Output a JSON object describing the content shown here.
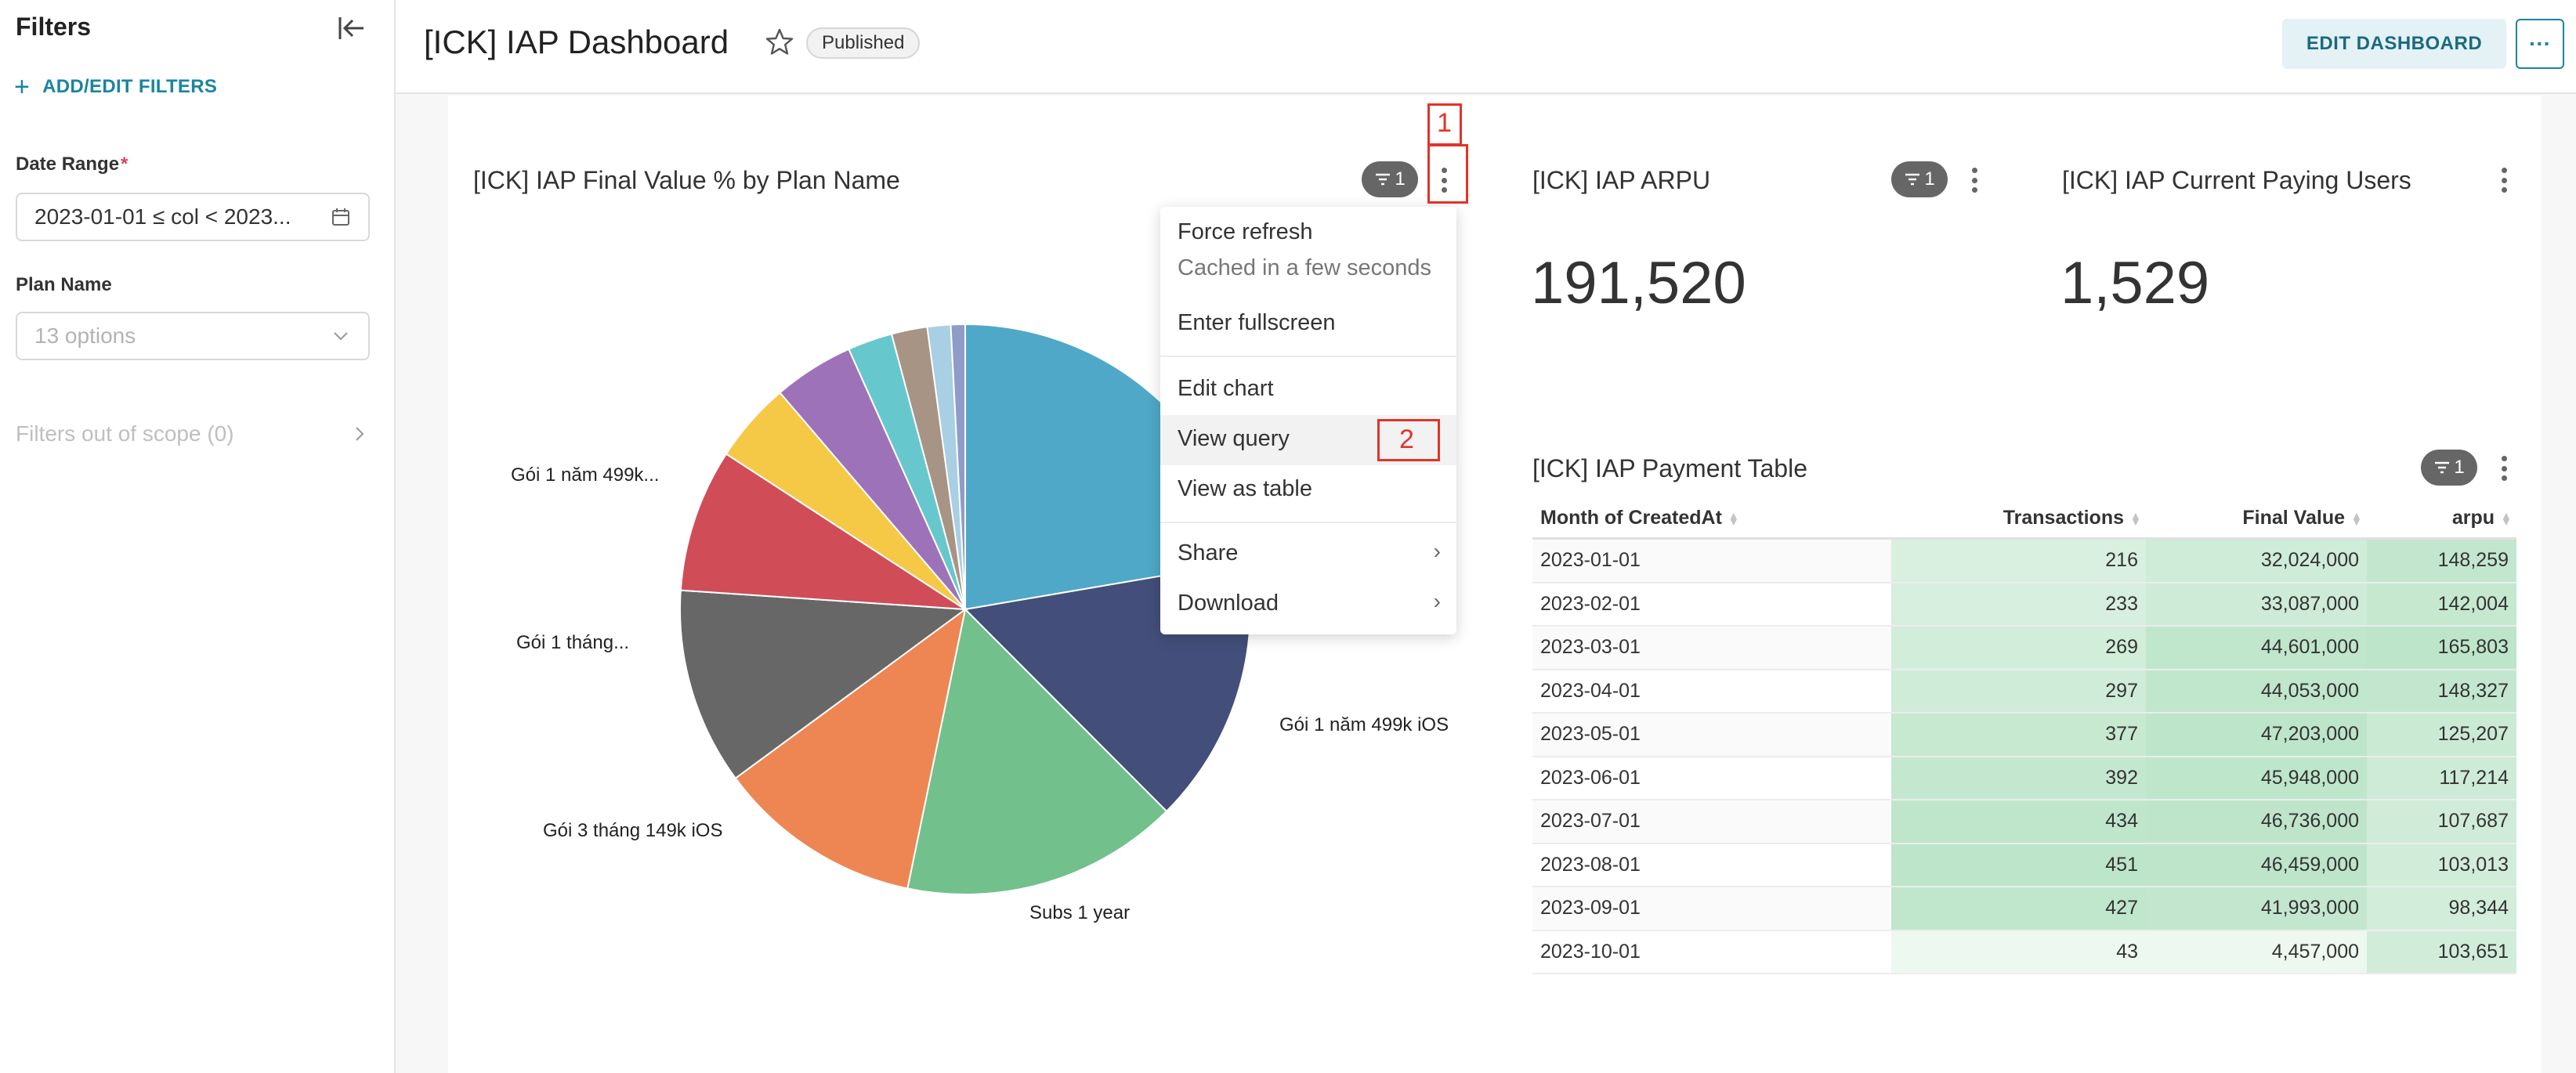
{
  "sidebar": {
    "title": "Filters",
    "add_filters_label": "ADD/EDIT FILTERS",
    "date_range": {
      "label": "Date Range",
      "required_mark": "*",
      "value": "2023-01-01 ≤ col < 2023..."
    },
    "plan_name": {
      "label": "Plan Name",
      "placeholder": "13 options"
    },
    "out_of_scope_label": "Filters out of scope (0)"
  },
  "header": {
    "title": "[ICK] IAP Dashboard",
    "status_badge": "Published",
    "edit_button": "EDIT DASHBOARD",
    "more_button": "···"
  },
  "pie_panel": {
    "title": "[ICK] IAP Final Value % by Plan Name",
    "filter_count": "1",
    "labels": [
      "Gói 1 năm 499k...",
      "Gói 1 tháng...",
      "Gói 3 tháng 149k iOS",
      "Subs 1 year",
      "Gói 1 năm 499k iOS"
    ]
  },
  "chart_data": {
    "type": "pie",
    "title": "[ICK] IAP Final Value % by Plan Name",
    "slices": [
      {
        "label": "",
        "value": 22.0,
        "color": "#4fa8c8"
      },
      {
        "label": "Gói 1 năm 499k iOS",
        "value": 15.0,
        "color": "#434f7a"
      },
      {
        "label": "Subs 1 year",
        "value": 15.5,
        "color": "#72c08c"
      },
      {
        "label": "Gói 3 tháng 149k iOS",
        "value": 11.5,
        "color": "#ee8653"
      },
      {
        "label": "Gói 1 tháng...",
        "value": 11.0,
        "color": "#676767"
      },
      {
        "label": "Gói 1 năm 499k...",
        "value": 8.0,
        "color": "#d04d58"
      },
      {
        "label": "",
        "value": 4.5,
        "color": "#f5c845"
      },
      {
        "label": "",
        "value": 4.5,
        "color": "#9e72b8"
      },
      {
        "label": "",
        "value": 2.5,
        "color": "#66c8cc"
      },
      {
        "label": "",
        "value": 2.0,
        "color": "#a89484"
      },
      {
        "label": "",
        "value": 1.3,
        "color": "#a8cfe3"
      },
      {
        "label": "",
        "value": 0.8,
        "color": "#8f9cc7"
      }
    ]
  },
  "context_menu": {
    "force_refresh": "Force refresh",
    "cached_note": "Cached in a few seconds",
    "enter_fullscreen": "Enter fullscreen",
    "edit_chart": "Edit chart",
    "view_query": "View query",
    "view_as_table": "View as table",
    "share": "Share",
    "download": "Download",
    "chevron": "›"
  },
  "annotations": {
    "step1": "1",
    "step2": "2"
  },
  "arpu_panel": {
    "title": "[ICK] IAP ARPU",
    "filter_count": "1",
    "value": "191,520"
  },
  "users_panel": {
    "title": "[ICK] IAP Current Paying Users",
    "value": "1,529"
  },
  "table_panel": {
    "title": "[ICK] IAP Payment Table",
    "filter_count": "1",
    "columns": [
      "Month of CreatedAt",
      "Transactions",
      "Final Value",
      "arpu"
    ],
    "rows": [
      [
        "2023-01-01",
        "216",
        "32,024,000",
        "148,259"
      ],
      [
        "2023-02-01",
        "233",
        "33,087,000",
        "142,004"
      ],
      [
        "2023-03-01",
        "269",
        "44,601,000",
        "165,803"
      ],
      [
        "2023-04-01",
        "297",
        "44,053,000",
        "148,327"
      ],
      [
        "2023-05-01",
        "377",
        "47,203,000",
        "125,207"
      ],
      [
        "2023-06-01",
        "392",
        "45,948,000",
        "117,214"
      ],
      [
        "2023-07-01",
        "434",
        "46,736,000",
        "107,687"
      ],
      [
        "2023-08-01",
        "451",
        "46,459,000",
        "103,013"
      ],
      [
        "2023-09-01",
        "427",
        "41,993,000",
        "98,344"
      ],
      [
        "2023-10-01",
        "43",
        "4,457,000",
        "103,651"
      ]
    ]
  }
}
